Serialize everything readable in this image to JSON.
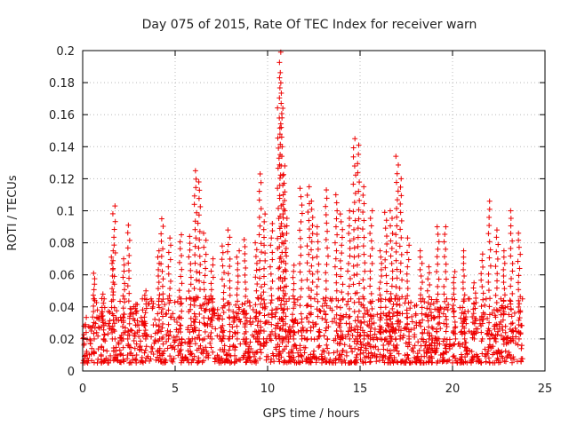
{
  "chart_data": {
    "type": "scatter",
    "title": "Day 075 of 2015, Rate Of TEC Index for receiver warn",
    "xlabel": "GPS time / hours",
    "ylabel": "ROTI / TECUs",
    "xlim": [
      0,
      25
    ],
    "ylim": [
      0,
      0.2
    ],
    "grid": true,
    "marker": "+",
    "color": "#ee0000",
    "xticks": [
      0,
      5,
      10,
      15,
      20,
      25
    ],
    "yticks": [
      0,
      0.02,
      0.04,
      0.06,
      0.08,
      0.1,
      0.12,
      0.14,
      0.16,
      0.18,
      0.2
    ],
    "x_range_of_data": [
      0,
      23.8
    ],
    "typical_range": [
      0.005,
      0.045
    ],
    "peaks": [
      {
        "x": 0.6,
        "y": 0.061
      },
      {
        "x": 1.1,
        "y": 0.048
      },
      {
        "x": 1.6,
        "y": 0.075
      },
      {
        "x": 1.7,
        "y": 0.103
      },
      {
        "x": 2.2,
        "y": 0.07
      },
      {
        "x": 2.5,
        "y": 0.091
      },
      {
        "x": 3.4,
        "y": 0.05
      },
      {
        "x": 4.1,
        "y": 0.075
      },
      {
        "x": 4.3,
        "y": 0.095
      },
      {
        "x": 4.7,
        "y": 0.083
      },
      {
        "x": 5.3,
        "y": 0.085
      },
      {
        "x": 5.8,
        "y": 0.084
      },
      {
        "x": 6.1,
        "y": 0.125
      },
      {
        "x": 6.3,
        "y": 0.118
      },
      {
        "x": 6.6,
        "y": 0.086
      },
      {
        "x": 7.0,
        "y": 0.07
      },
      {
        "x": 7.6,
        "y": 0.078
      },
      {
        "x": 7.9,
        "y": 0.088
      },
      {
        "x": 8.4,
        "y": 0.075
      },
      {
        "x": 8.8,
        "y": 0.082
      },
      {
        "x": 9.4,
        "y": 0.08
      },
      {
        "x": 9.6,
        "y": 0.123
      },
      {
        "x": 9.8,
        "y": 0.098
      },
      {
        "x": 10.2,
        "y": 0.092
      },
      {
        "x": 10.6,
        "y": 0.183
      },
      {
        "x": 10.7,
        "y": 0.199
      },
      {
        "x": 10.8,
        "y": 0.164
      },
      {
        "x": 10.9,
        "y": 0.128
      },
      {
        "x": 11.0,
        "y": 0.1
      },
      {
        "x": 11.4,
        "y": 0.066
      },
      {
        "x": 11.8,
        "y": 0.114
      },
      {
        "x": 12.2,
        "y": 0.115
      },
      {
        "x": 12.4,
        "y": 0.106
      },
      {
        "x": 12.7,
        "y": 0.09
      },
      {
        "x": 13.2,
        "y": 0.113
      },
      {
        "x": 13.7,
        "y": 0.11
      },
      {
        "x": 14.0,
        "y": 0.098
      },
      {
        "x": 14.4,
        "y": 0.1
      },
      {
        "x": 14.7,
        "y": 0.145
      },
      {
        "x": 14.9,
        "y": 0.141
      },
      {
        "x": 15.2,
        "y": 0.115
      },
      {
        "x": 15.6,
        "y": 0.1
      },
      {
        "x": 16.1,
        "y": 0.075
      },
      {
        "x": 16.4,
        "y": 0.099
      },
      {
        "x": 16.7,
        "y": 0.1
      },
      {
        "x": 17.0,
        "y": 0.134
      },
      {
        "x": 17.2,
        "y": 0.12
      },
      {
        "x": 17.6,
        "y": 0.083
      },
      {
        "x": 18.3,
        "y": 0.075
      },
      {
        "x": 18.7,
        "y": 0.065
      },
      {
        "x": 19.2,
        "y": 0.09
      },
      {
        "x": 19.6,
        "y": 0.09
      },
      {
        "x": 20.1,
        "y": 0.062
      },
      {
        "x": 20.6,
        "y": 0.075
      },
      {
        "x": 21.2,
        "y": 0.055
      },
      {
        "x": 21.6,
        "y": 0.073
      },
      {
        "x": 22.0,
        "y": 0.106
      },
      {
        "x": 22.4,
        "y": 0.088
      },
      {
        "x": 22.8,
        "y": 0.075
      },
      {
        "x": 23.2,
        "y": 0.1
      },
      {
        "x": 23.6,
        "y": 0.086
      }
    ]
  }
}
